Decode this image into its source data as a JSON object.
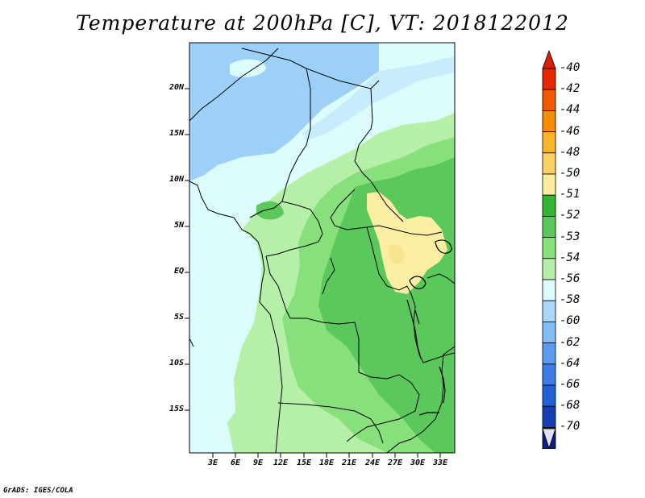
{
  "title": "Temperature at 200hPa [C], VT: 2018122012",
  "credit": "GrADS: IGES/COLA",
  "map": {
    "y_axis_labels": [
      "20N",
      "15N",
      "10N",
      "5N",
      "EQ",
      "5S",
      "10S",
      "15S"
    ],
    "x_axis_labels": [
      "3E",
      "6E",
      "9E",
      "12E",
      "15E",
      "18E",
      "21E",
      "24E",
      "27E",
      "30E",
      "33E"
    ],
    "fill_colors": {
      "t_minus_50_51": "#fbeea3",
      "t_minus_51_52": "#5ac85a",
      "t_minus_52_53": "#87e07c",
      "t_minus_53_54": "#b6f0a8",
      "t_minus_54_56": "#dcfcfc",
      "t_minus_56_58": "#9cd0f6"
    }
  },
  "colorbar": {
    "labels": [
      "-40",
      "-42",
      "-44",
      "-46",
      "-48",
      "-50",
      "-51",
      "-52",
      "-53",
      "-54",
      "-56",
      "-58",
      "-60",
      "-62",
      "-64",
      "-66",
      "-68",
      "-70"
    ],
    "colors": [
      "#e62800",
      "#f05a00",
      "#f88c00",
      "#fcb42c",
      "#fcd064",
      "#fcec9c",
      "#33b433",
      "#5ac85a",
      "#87e07c",
      "#b6f0a8",
      "#dcfcfc",
      "#a8d8fc",
      "#82bcf6",
      "#5c9cf0",
      "#3c7ce6",
      "#2060d8",
      "#1440b4",
      "#0c1e80"
    ],
    "top_color": "#dc1e00",
    "bottom_color": "#e0e0fc"
  }
}
